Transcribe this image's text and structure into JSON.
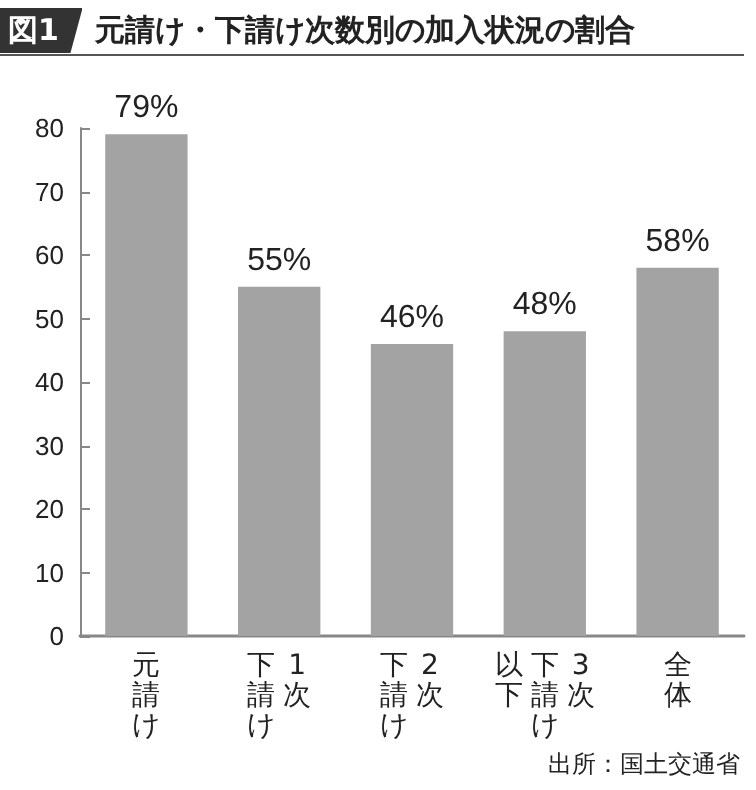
{
  "chart_data": {
    "type": "bar",
    "title": "図1 元請け・下請け次数別の加入状況の割合",
    "categories": [
      "元請け",
      "1次下請け",
      "2次下請け",
      "3次下請け以下",
      "全体"
    ],
    "values": [
      79,
      55,
      46,
      48,
      58
    ],
    "color": "#a3a3a3",
    "value_labels": [
      "79%",
      "55%",
      "46%",
      "48%",
      "58%"
    ],
    "ylim": [
      0,
      80
    ],
    "yticks": [
      0,
      10,
      20,
      30,
      40,
      50,
      60,
      70,
      80
    ],
    "grid": false,
    "annotations": [
      "出所：国土交通省"
    ]
  }
}
